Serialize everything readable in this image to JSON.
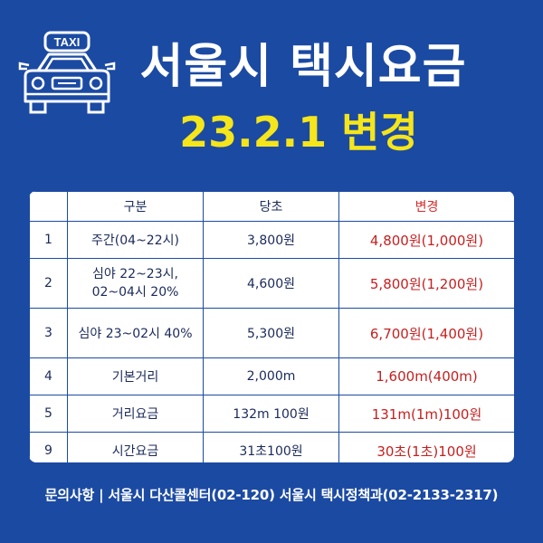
{
  "icon": {
    "name": "taxi-car-icon",
    "sign_text": "TAXI"
  },
  "title": "서울시 택시요금",
  "subtitle": "23.2.1 변경",
  "colors": {
    "background": "#1b4aa3",
    "title": "#ffffff",
    "subtitle": "#f5e51b",
    "changed": "#c62020"
  },
  "table": {
    "headers": [
      "",
      "구분",
      "당초",
      "변경"
    ],
    "rows": [
      {
        "no": "1",
        "category": [
          "주간(04~22시)"
        ],
        "before": "3,800원",
        "after": "4,800원(1,000원)"
      },
      {
        "no": "2",
        "category": [
          "심야 22~23시,",
          "02~04시 20%"
        ],
        "before": "4,600원",
        "after": "5,800원(1,200원)"
      },
      {
        "no": "3",
        "category": [
          "심야 23~02시 40%"
        ],
        "before": "5,300원",
        "after": "6,700원(1,400원)"
      },
      {
        "no": "4",
        "category": [
          "기본거리"
        ],
        "before": "2,000m",
        "after": "1,600m(400m)"
      },
      {
        "no": "5",
        "category": [
          "거리요금"
        ],
        "before": "132m 100원",
        "after": "131m(1m)100원"
      },
      {
        "no": "9",
        "category": [
          "시간요금"
        ],
        "before": "31초100원",
        "after": "30초(1초)100원"
      }
    ]
  },
  "footer": "문의사항 | 서울시 다산콜센터(02-120) 서울시 택시정책과(02-2133-2317)"
}
